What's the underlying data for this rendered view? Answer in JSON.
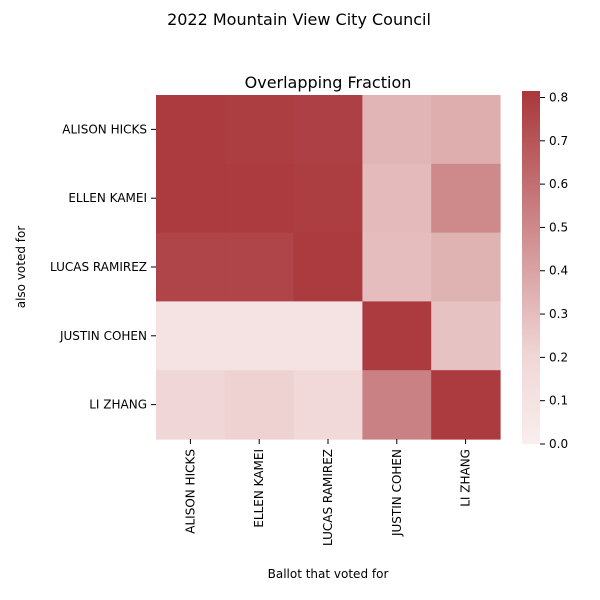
{
  "chart_data": {
    "type": "heatmap",
    "suptitle": "2022 Mountain View City Council",
    "title": "Overlapping Fraction",
    "xlabel": "Ballot that voted for",
    "ylabel": "also voted for",
    "x_categories": [
      "ALISON HICKS",
      "ELLEN KAMEI",
      "LUCAS RAMIREZ",
      "JUSTIN COHEN",
      "LI ZHANG"
    ],
    "y_categories": [
      "ALISON HICKS",
      "ELLEN KAMEI",
      "LUCAS RAMIREZ",
      "JUSTIN COHEN",
      "LI ZHANG"
    ],
    "values": [
      [
        0.8,
        0.79,
        0.78,
        0.33,
        0.36
      ],
      [
        0.8,
        0.8,
        0.79,
        0.31,
        0.5
      ],
      [
        0.76,
        0.76,
        0.8,
        0.3,
        0.34
      ],
      [
        0.1,
        0.09,
        0.09,
        0.8,
        0.28
      ],
      [
        0.2,
        0.22,
        0.18,
        0.53,
        0.8
      ]
    ],
    "vmin": 0,
    "vmax": 0.815,
    "colorbar_ticks": [
      "0.0",
      "0.1",
      "0.2",
      "0.3",
      "0.4",
      "0.5",
      "0.6",
      "0.7",
      "0.8"
    ],
    "colormap": {
      "low": "#f9eeee",
      "mid": "#f0d6d6",
      "high": "#a9373b"
    }
  }
}
